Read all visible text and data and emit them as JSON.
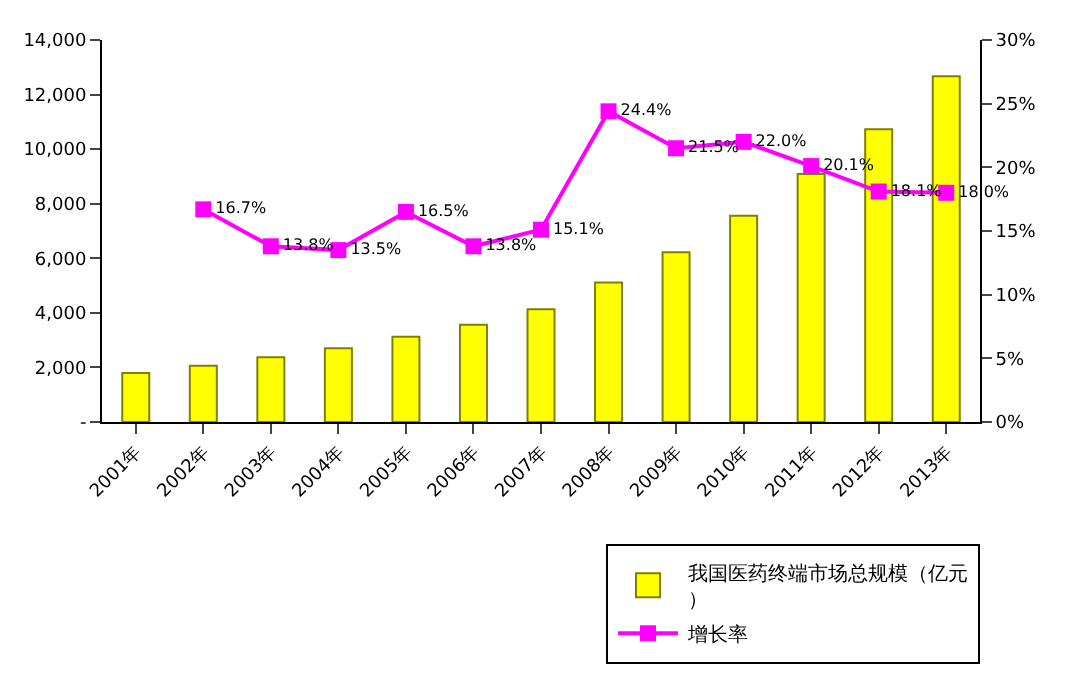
{
  "chart_data": {
    "type": "bar",
    "categories": [
      "2001年",
      "2002年",
      "2003年",
      "2004年",
      "2005年",
      "2006年",
      "2007年",
      "2008年",
      "2009年",
      "2010年",
      "2011年",
      "2012年",
      "2013年"
    ],
    "series": [
      {
        "name": "我国医药终端市场总规模（亿元）",
        "color": "#ffff00",
        "values": [
          1800,
          2060,
          2370,
          2700,
          3120,
          3560,
          4130,
          5110,
          6220,
          7560,
          9090,
          10730,
          12670
        ]
      },
      {
        "name": "增长率",
        "type": "line",
        "axis": "y2",
        "color": "#ff00ff",
        "marker": "square",
        "values": [
          null,
          16.7,
          13.8,
          13.5,
          16.5,
          13.8,
          15.1,
          24.4,
          21.5,
          22.0,
          20.1,
          18.1,
          18.0
        ],
        "value_labels": [
          null,
          "16.7%",
          "13.8%",
          "13.5%",
          "16.5%",
          "13.8%",
          "15.1%",
          "24.4%",
          "21.5%",
          "22.0%",
          "20.1%",
          "18.1%",
          "18.0%"
        ]
      }
    ],
    "ylim": [
      0,
      14000
    ],
    "yticks": [
      {
        "value": 0,
        "label": "-"
      },
      {
        "value": 2000,
        "label": "2,000"
      },
      {
        "value": 4000,
        "label": "4,000"
      },
      {
        "value": 6000,
        "label": "6,000"
      },
      {
        "value": 8000,
        "label": "8,000"
      },
      {
        "value": 10000,
        "label": "10,000"
      },
      {
        "value": 12000,
        "label": "12,000"
      },
      {
        "value": 14000,
        "label": "14,000"
      }
    ],
    "y2lim": [
      0,
      30
    ],
    "y2ticks": [
      {
        "value": 0,
        "label": "0%"
      },
      {
        "value": 5,
        "label": "5%"
      },
      {
        "value": 10,
        "label": "10%"
      },
      {
        "value": 15,
        "label": "15%"
      },
      {
        "value": 20,
        "label": "20%"
      },
      {
        "value": 25,
        "label": "25%"
      },
      {
        "value": 30,
        "label": "30%"
      }
    ],
    "legend": "bottom right"
  }
}
